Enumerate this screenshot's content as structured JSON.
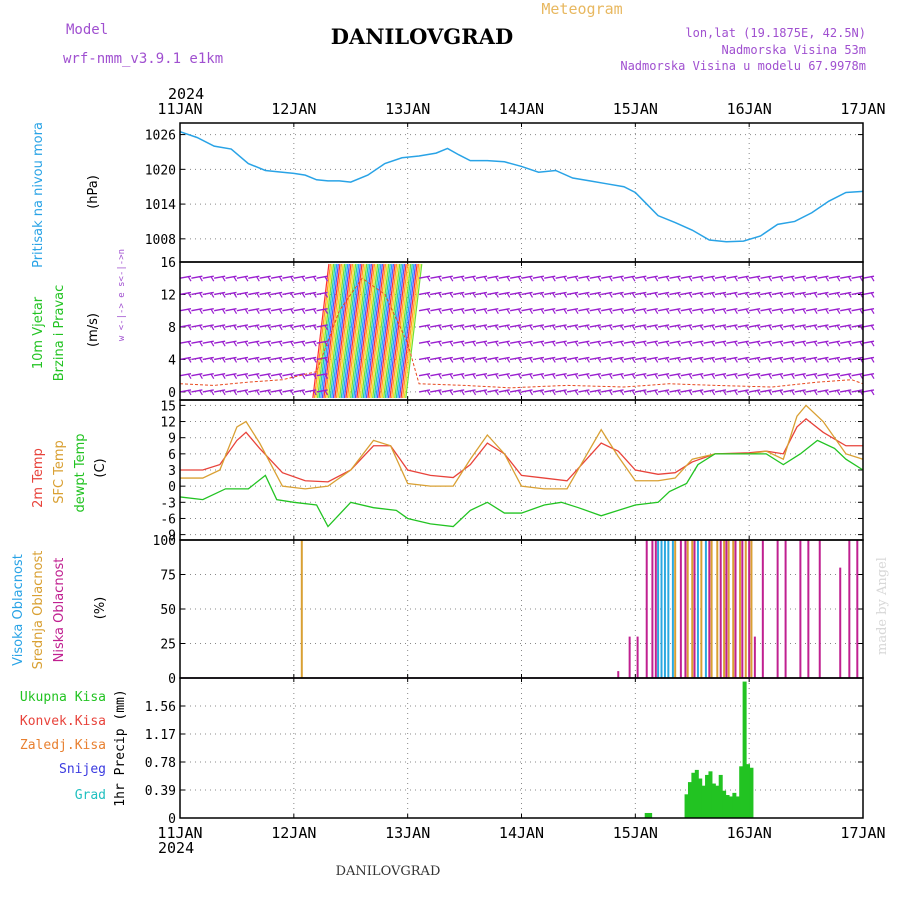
{
  "header": {
    "model_label": "Model",
    "model_name": "wrf-nmm_v3.9.1 e1km",
    "title": "DANILOVGRAD",
    "subtitle": "Meteogram",
    "coords": "lon,lat (19.1875E, 42.5N)",
    "elevation": "Nadmorska Visina 53m",
    "model_elevation": "Nadmorska Visina u modelu 67.9978m",
    "year_top": "2024",
    "year_bottom": "2024",
    "footer": "DANILOVGRAD",
    "credit": "made by Angel"
  },
  "colors": {
    "pressure": "#29a3e6",
    "wind_barb": "#9a1fd0",
    "temp2m": "#e8433b",
    "sfc_temp": "#d9a033",
    "dewpoint": "#22c322",
    "cloud_high": "#2aa8e0",
    "cloud_mid": "#d9a033",
    "cloud_low": "#c02090",
    "precip_total": "#22c322",
    "grid": "#888888"
  },
  "chart_data": [
    {
      "type": "line",
      "panel": "pressure",
      "ylabel_main": "Pritisak na nivou mora",
      "ylabel_unit": "(hPa)",
      "x_ticks": [
        "11JAN",
        "12JAN",
        "13JAN",
        "14JAN",
        "15JAN",
        "16JAN",
        "17JAN"
      ],
      "ylim": [
        1004,
        1028
      ],
      "yticks": [
        "1008",
        "1014",
        "1020",
        "1026"
      ],
      "grid": true,
      "series": [
        {
          "values": [
            [
              0,
              1026.5
            ],
            [
              0.15,
              1025.5
            ],
            [
              0.3,
              1024
            ],
            [
              0.45,
              1023.5
            ],
            [
              0.6,
              1021
            ],
            [
              0.75,
              1019.8
            ],
            [
              0.9,
              1019.5
            ],
            [
              1.0,
              1019.3
            ],
            [
              1.1,
              1019
            ],
            [
              1.2,
              1018.2
            ],
            [
              1.3,
              1018
            ],
            [
              1.4,
              1018
            ],
            [
              1.5,
              1017.8
            ],
            [
              1.65,
              1019
            ],
            [
              1.8,
              1021
            ],
            [
              1.95,
              1022
            ],
            [
              2.1,
              1022.3
            ],
            [
              2.25,
              1022.8
            ],
            [
              2.35,
              1023.6
            ],
            [
              2.45,
              1022.5
            ],
            [
              2.55,
              1021.5
            ],
            [
              2.7,
              1021.5
            ],
            [
              2.85,
              1021.3
            ],
            [
              3.0,
              1020.5
            ],
            [
              3.15,
              1019.5
            ],
            [
              3.3,
              1019.8
            ],
            [
              3.45,
              1018.5
            ],
            [
              3.6,
              1018
            ],
            [
              3.75,
              1017.5
            ],
            [
              3.9,
              1017
            ],
            [
              4.0,
              1016
            ],
            [
              4.1,
              1014
            ],
            [
              4.2,
              1012
            ],
            [
              4.35,
              1010.8
            ],
            [
              4.5,
              1009.5
            ],
            [
              4.65,
              1007.8
            ],
            [
              4.8,
              1007.5
            ],
            [
              4.95,
              1007.6
            ],
            [
              5.1,
              1008.5
            ],
            [
              5.25,
              1010.5
            ],
            [
              5.4,
              1011
            ],
            [
              5.55,
              1012.5
            ],
            [
              5.7,
              1014.5
            ],
            [
              5.85,
              1016
            ],
            [
              6.0,
              1016.2
            ]
          ]
        }
      ]
    },
    {
      "type": "scatter",
      "panel": "wind",
      "ylabel_main": "10m Vjetar",
      "ylabel_sub": "Brzina i Pravac",
      "ylabel_unit": "(m/s)",
      "compass": "w <-|-> e   s<-|->n",
      "ylim": [
        -1,
        16
      ],
      "yticks": [
        "0",
        "4",
        "8",
        "12",
        "16"
      ],
      "grid": true,
      "strong_wind_window_days": [
        1.22,
        2.05
      ],
      "series": [
        {
          "name": "Brzina",
          "values": [
            [
              0,
              1.0
            ],
            [
              0.3,
              0.8
            ],
            [
              0.6,
              1.2
            ],
            [
              0.9,
              1.5
            ],
            [
              1.2,
              2.5
            ],
            [
              1.4,
              10
            ],
            [
              1.6,
              14
            ],
            [
              1.8,
              12
            ],
            [
              2.0,
              6
            ],
            [
              2.1,
              1.0
            ],
            [
              2.5,
              0.8
            ],
            [
              2.9,
              0.5
            ],
            [
              3.4,
              0.8
            ],
            [
              3.9,
              0.6
            ],
            [
              4.3,
              1.0
            ],
            [
              4.7,
              0.8
            ],
            [
              5.2,
              0.6
            ],
            [
              5.6,
              1.2
            ],
            [
              5.9,
              1.5
            ],
            [
              6.0,
              1.0
            ]
          ]
        }
      ]
    },
    {
      "type": "line",
      "panel": "temperature",
      "ylabel_unit": "(C)",
      "ylim": [
        -10,
        16
      ],
      "yticks": [
        "-9",
        "-6",
        "-3",
        "0",
        "3",
        "6",
        "9",
        "12",
        "15"
      ],
      "grid": true,
      "series": [
        {
          "name": "2m Temp",
          "values": [
            [
              0,
              3
            ],
            [
              0.2,
              3
            ],
            [
              0.35,
              4
            ],
            [
              0.5,
              8.5
            ],
            [
              0.58,
              10
            ],
            [
              0.7,
              7
            ],
            [
              0.9,
              2.5
            ],
            [
              1.1,
              1
            ],
            [
              1.3,
              0.8
            ],
            [
              1.5,
              3
            ],
            [
              1.7,
              7.5
            ],
            [
              1.85,
              7.5
            ],
            [
              2.0,
              3
            ],
            [
              2.2,
              2
            ],
            [
              2.4,
              1.6
            ],
            [
              2.55,
              4
            ],
            [
              2.7,
              8
            ],
            [
              2.85,
              6
            ],
            [
              3.0,
              2
            ],
            [
              3.2,
              1.5
            ],
            [
              3.4,
              1.0
            ],
            [
              3.55,
              4.5
            ],
            [
              3.7,
              8
            ],
            [
              3.85,
              6.5
            ],
            [
              4.0,
              3
            ],
            [
              4.2,
              2.2
            ],
            [
              4.35,
              2.5
            ],
            [
              4.5,
              4.5
            ],
            [
              4.7,
              6
            ],
            [
              5.0,
              6.2
            ],
            [
              5.15,
              6.5
            ],
            [
              5.3,
              6
            ],
            [
              5.42,
              11
            ],
            [
              5.5,
              12.5
            ],
            [
              5.65,
              10
            ],
            [
              5.85,
              7.5
            ],
            [
              6.0,
              7.5
            ]
          ]
        },
        {
          "name": "SFC Temp",
          "values": [
            [
              0,
              1.5
            ],
            [
              0.2,
              1.5
            ],
            [
              0.35,
              3
            ],
            [
              0.5,
              11
            ],
            [
              0.58,
              12
            ],
            [
              0.7,
              8
            ],
            [
              0.9,
              0
            ],
            [
              1.1,
              -0.5
            ],
            [
              1.3,
              0
            ],
            [
              1.5,
              3
            ],
            [
              1.7,
              8.5
            ],
            [
              1.85,
              7.5
            ],
            [
              2.0,
              0.5
            ],
            [
              2.2,
              0
            ],
            [
              2.4,
              0
            ],
            [
              2.55,
              5
            ],
            [
              2.7,
              9.5
            ],
            [
              2.85,
              6
            ],
            [
              3.0,
              0
            ],
            [
              3.2,
              -0.5
            ],
            [
              3.4,
              -0.5
            ],
            [
              3.55,
              5
            ],
            [
              3.7,
              10.5
            ],
            [
              3.85,
              5.5
            ],
            [
              4.0,
              1
            ],
            [
              4.2,
              1
            ],
            [
              4.35,
              1.5
            ],
            [
              4.5,
              5
            ],
            [
              4.7,
              6
            ],
            [
              5.0,
              6
            ],
            [
              5.15,
              6.5
            ],
            [
              5.3,
              5
            ],
            [
              5.42,
              13
            ],
            [
              5.5,
              15
            ],
            [
              5.65,
              12
            ],
            [
              5.85,
              6
            ],
            [
              6.0,
              5
            ]
          ]
        },
        {
          "name": "dewpt Temp",
          "values": [
            [
              0,
              -2
            ],
            [
              0.2,
              -2.5
            ],
            [
              0.4,
              -0.5
            ],
            [
              0.6,
              -0.5
            ],
            [
              0.75,
              2
            ],
            [
              0.85,
              -2.5
            ],
            [
              1.0,
              -3
            ],
            [
              1.2,
              -3.5
            ],
            [
              1.3,
              -7.5
            ],
            [
              1.5,
              -3
            ],
            [
              1.7,
              -4
            ],
            [
              1.9,
              -4.5
            ],
            [
              2.0,
              -6
            ],
            [
              2.2,
              -7
            ],
            [
              2.4,
              -7.5
            ],
            [
              2.55,
              -4.5
            ],
            [
              2.7,
              -3
            ],
            [
              2.85,
              -5
            ],
            [
              3.0,
              -5
            ],
            [
              3.2,
              -3.5
            ],
            [
              3.35,
              -3
            ],
            [
              3.5,
              -4
            ],
            [
              3.7,
              -5.5
            ],
            [
              3.85,
              -4.5
            ],
            [
              4.0,
              -3.5
            ],
            [
              4.2,
              -3
            ],
            [
              4.3,
              -1
            ],
            [
              4.45,
              0.5
            ],
            [
              4.55,
              4
            ],
            [
              4.7,
              6
            ],
            [
              4.9,
              6
            ],
            [
              5.15,
              6
            ],
            [
              5.3,
              4
            ],
            [
              5.45,
              6
            ],
            [
              5.6,
              8.5
            ],
            [
              5.75,
              7
            ],
            [
              5.85,
              5
            ],
            [
              6.0,
              3
            ]
          ]
        }
      ]
    },
    {
      "type": "bar",
      "panel": "cloud",
      "ylabel_unit": "(%)",
      "ylim": [
        0,
        100
      ],
      "yticks": [
        "0",
        "25",
        "50",
        "75",
        "100"
      ],
      "grid": true,
      "series": [
        {
          "name": "Visoka Oblacnost",
          "values": [
            [
              4.2,
              100
            ],
            [
              4.23,
              100
            ],
            [
              4.26,
              100
            ],
            [
              4.29,
              100
            ],
            [
              4.33,
              100
            ],
            [
              4.55,
              100
            ],
            [
              4.62,
              100
            ]
          ]
        },
        {
          "name": "Srednja Oblacnost",
          "values": [
            [
              1.07,
              100
            ],
            [
              4.35,
              100
            ],
            [
              4.46,
              100
            ],
            [
              4.5,
              100
            ],
            [
              4.58,
              100
            ],
            [
              4.67,
              100
            ],
            [
              4.72,
              100
            ],
            [
              4.78,
              100
            ],
            [
              4.82,
              100
            ],
            [
              4.86,
              100
            ],
            [
              4.92,
              100
            ],
            [
              4.97,
              100
            ],
            [
              5.02,
              100
            ]
          ]
        },
        {
          "name": "Niska Oblacnost",
          "values": [
            [
              3.85,
              5
            ],
            [
              3.95,
              30
            ],
            [
              4.02,
              30
            ],
            [
              4.1,
              100
            ],
            [
              4.15,
              100
            ],
            [
              4.18,
              100
            ],
            [
              4.4,
              100
            ],
            [
              4.44,
              100
            ],
            [
              4.52,
              100
            ],
            [
              4.65,
              100
            ],
            [
              4.75,
              100
            ],
            [
              4.8,
              100
            ],
            [
              4.88,
              100
            ],
            [
              4.94,
              100
            ],
            [
              5.0,
              100
            ],
            [
              5.05,
              30
            ],
            [
              5.12,
              100
            ],
            [
              5.25,
              100
            ],
            [
              5.32,
              100
            ],
            [
              5.45,
              100
            ],
            [
              5.52,
              100
            ],
            [
              5.62,
              100
            ],
            [
              5.8,
              80
            ],
            [
              5.88,
              100
            ],
            [
              5.95,
              100
            ]
          ]
        }
      ]
    },
    {
      "type": "bar",
      "panel": "precipitation",
      "ylabel_unit": "1hr Precip (mm)",
      "ylim": [
        0,
        1.95
      ],
      "yticks": [
        "0",
        "0.39",
        "0.78",
        "1.17",
        "1.56"
      ],
      "grid": true,
      "legend": [
        "Ukupna Kisa",
        "Konvek.Kisa",
        "Zaledj.Kisa",
        "Snijeg",
        "Grad"
      ],
      "series": [
        {
          "name": "Ukupna Kisa",
          "values": [
            [
              4.1,
              0.07
            ],
            [
              4.13,
              0.07
            ],
            [
              4.45,
              0.33
            ],
            [
              4.48,
              0.5
            ],
            [
              4.51,
              0.63
            ],
            [
              4.54,
              0.67
            ],
            [
              4.57,
              0.55
            ],
            [
              4.6,
              0.45
            ],
            [
              4.63,
              0.6
            ],
            [
              4.66,
              0.65
            ],
            [
              4.69,
              0.48
            ],
            [
              4.72,
              0.45
            ],
            [
              4.75,
              0.6
            ],
            [
              4.78,
              0.38
            ],
            [
              4.81,
              0.32
            ],
            [
              4.84,
              0.3
            ],
            [
              4.87,
              0.35
            ],
            [
              4.9,
              0.3
            ],
            [
              4.93,
              0.72
            ],
            [
              4.96,
              1.9
            ],
            [
              4.99,
              0.75
            ],
            [
              5.02,
              0.7
            ]
          ]
        }
      ]
    }
  ],
  "y_labels": {
    "temp": [
      "2m Temp",
      "SFC Temp",
      "dewpt Temp"
    ],
    "cloud": [
      "Visoka Oblacnost",
      "Srednja Oblacnost",
      "Niska Oblacnost"
    ]
  }
}
